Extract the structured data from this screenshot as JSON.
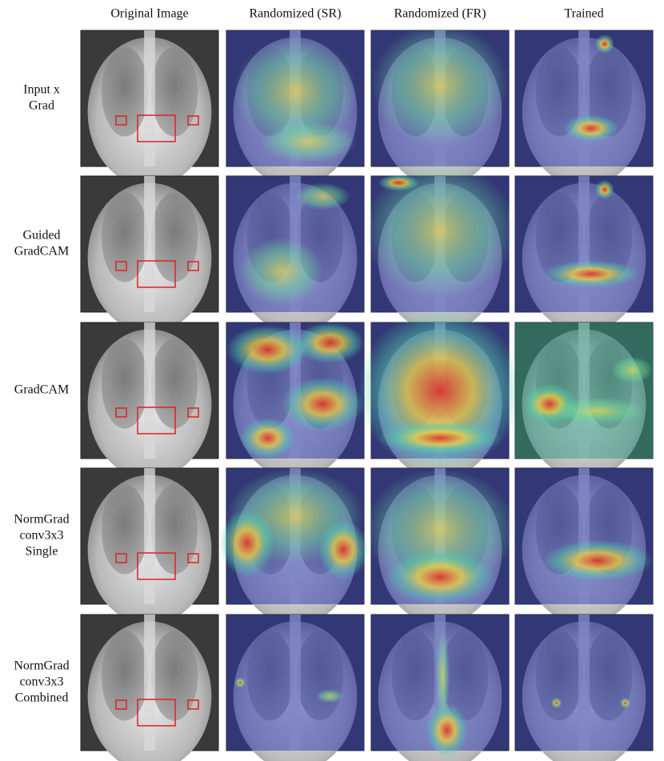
{
  "header": {
    "columns": [
      "Original Image",
      "Randomized (SR)",
      "Randomized (FR)",
      "Trained"
    ]
  },
  "rows": [
    {
      "label": [
        "Input x",
        "Grad"
      ]
    },
    {
      "label": [
        "Guided",
        "GradCAM"
      ]
    },
    {
      "label": [
        "GradCAM"
      ]
    },
    {
      "label": [
        "NormGrad",
        "conv3x3",
        "Single"
      ]
    },
    {
      "label": [
        "NormGrad",
        "conv3x3",
        "Combined"
      ]
    }
  ]
}
